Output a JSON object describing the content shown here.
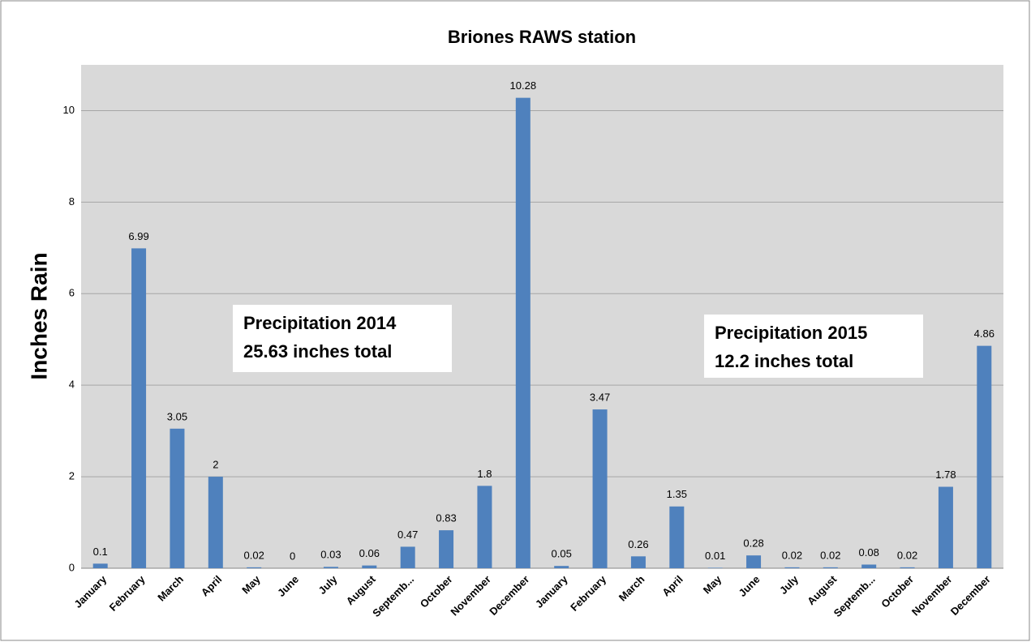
{
  "chart_data": {
    "type": "bar",
    "title": "Briones RAWS station",
    "y_label": "Inches Rain",
    "categories": [
      "January",
      "February",
      "March",
      "April",
      "May",
      "June",
      "July",
      "August",
      "Septemb...",
      "October",
      "November",
      "December",
      "January",
      "February",
      "March",
      "April",
      "May",
      "June",
      "July",
      "August",
      "Septemb...",
      "October",
      "November",
      "December"
    ],
    "values": [
      0.1,
      6.99,
      3.05,
      2,
      0.02,
      0,
      0.03,
      0.06,
      0.47,
      0.83,
      1.8,
      10.28,
      0.05,
      3.47,
      0.26,
      1.35,
      0.01,
      0.28,
      0.02,
      0.02,
      0.08,
      0.02,
      1.78,
      4.86
    ],
    "color": "#4f81bd",
    "ylim": [
      0,
      11
    ],
    "yticks": [
      0,
      2,
      4,
      6,
      8,
      10
    ],
    "grid": true,
    "annotations": [
      [
        "Precipitation 2014",
        "25.63 inches total"
      ],
      [
        "Precipitation 2015",
        "12.2 inches total"
      ]
    ]
  }
}
